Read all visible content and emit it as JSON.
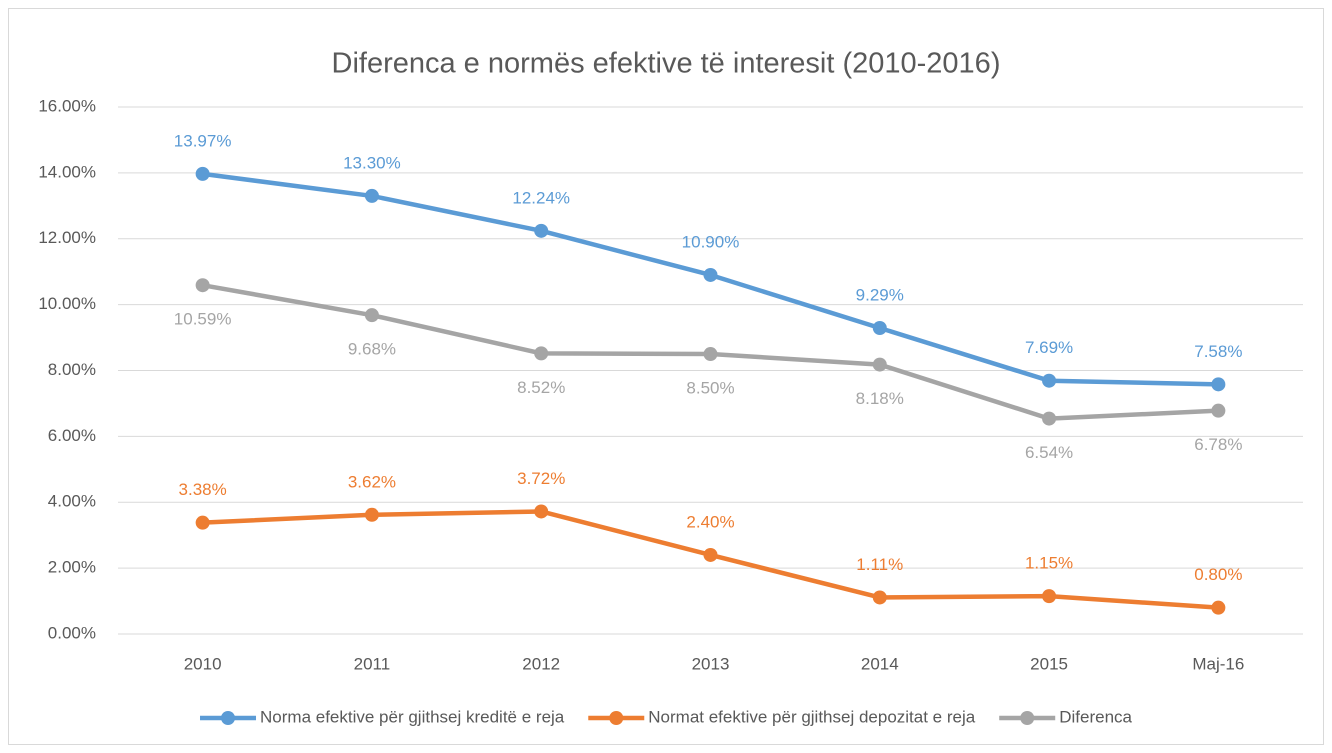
{
  "chart_data": {
    "type": "line",
    "title": "Diferenca e normës efektive të interesit (2010-2016)",
    "categories": [
      "2010",
      "2011",
      "2012",
      "2013",
      "2014",
      "2015",
      "Maj-16"
    ],
    "series": [
      {
        "name": "Norma efektive për gjithsej kreditë e reja",
        "color": "#5b9bd5",
        "label_position": "above",
        "values": [
          13.97,
          13.3,
          12.24,
          10.9,
          9.29,
          7.69,
          7.58
        ],
        "value_labels": [
          "13.97%",
          "13.30%",
          "12.24%",
          "10.90%",
          "9.29%",
          "7.69%",
          "7.58%"
        ]
      },
      {
        "name": "Normat efektive për gjithsej depozitat e reja",
        "color": "#ed7d31",
        "label_position": "above",
        "values": [
          3.38,
          3.62,
          3.72,
          2.4,
          1.11,
          1.15,
          0.8
        ],
        "value_labels": [
          "3.38%",
          "3.62%",
          "3.72%",
          "2.40%",
          "1.11%",
          "1.15%",
          "0.80%"
        ]
      },
      {
        "name": "Diferenca",
        "color": "#a5a5a5",
        "label_position": "below",
        "values": [
          10.59,
          9.68,
          8.52,
          8.5,
          8.18,
          6.54,
          6.78
        ],
        "value_labels": [
          "10.59%",
          "9.68%",
          "8.52%",
          "8.50%",
          "8.18%",
          "6.54%",
          "6.78%"
        ]
      }
    ],
    "ylim": [
      0,
      16
    ],
    "yticks": [
      {
        "value": 0,
        "label": "0.00%"
      },
      {
        "value": 2,
        "label": "2.00%"
      },
      {
        "value": 4,
        "label": "4.00%"
      },
      {
        "value": 6,
        "label": "6.00%"
      },
      {
        "value": 8,
        "label": "8.00%"
      },
      {
        "value": 10,
        "label": "10.00%"
      },
      {
        "value": 12,
        "label": "12.00%"
      },
      {
        "value": 14,
        "label": "14.00%"
      },
      {
        "value": 16,
        "label": "16.00%"
      }
    ],
    "grid": true,
    "legend": "bottom"
  }
}
